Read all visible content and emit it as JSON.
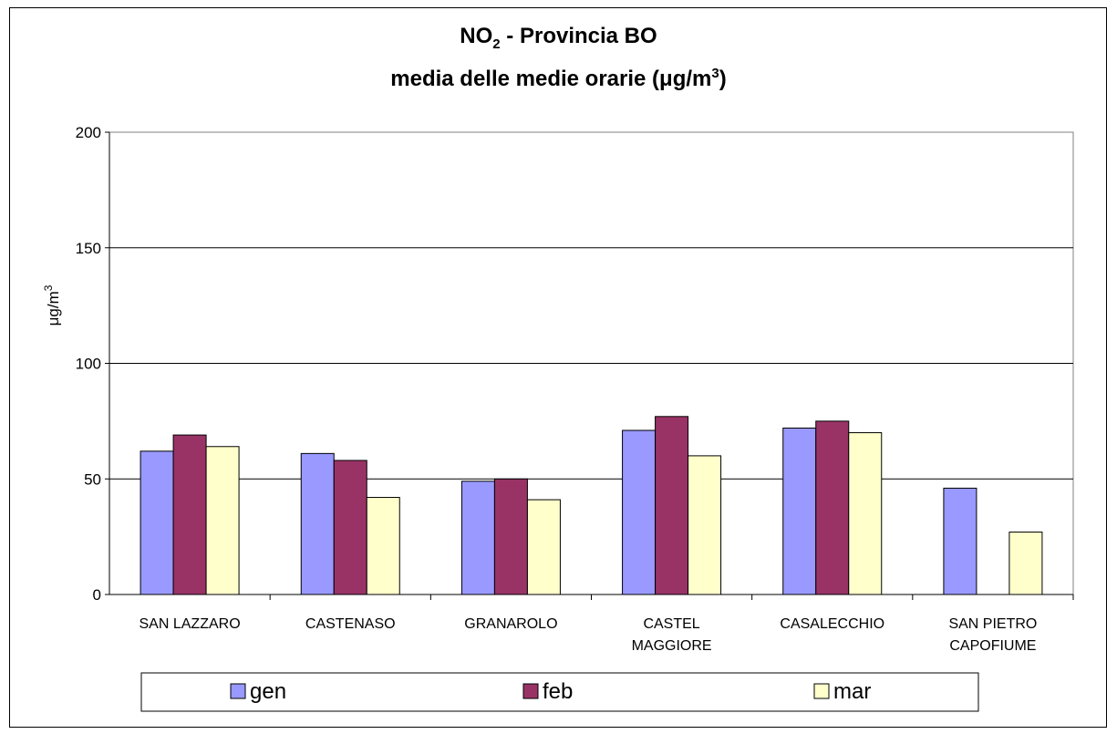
{
  "chart_data": {
    "type": "bar",
    "title_main": "NO",
    "title_sub": "2",
    "title_rest": " - Provincia BO",
    "subtitle_main": "media delle medie orarie (μg/m",
    "subtitle_sup": "3",
    "subtitle_end": ")",
    "ylabel_main": "μg/m",
    "ylabel_sup": "3",
    "ylim": [
      0,
      200
    ],
    "yticks": [
      0,
      50,
      100,
      150,
      200
    ],
    "grid": true,
    "legend_position": "bottom",
    "categories": [
      [
        "SAN LAZZARO"
      ],
      [
        "CASTENASO"
      ],
      [
        "GRANAROLO"
      ],
      [
        "CASTEL",
        "MAGGIORE"
      ],
      [
        "CASALECCHIO"
      ],
      [
        "SAN PIETRO",
        "CAPOFIUME"
      ]
    ],
    "series": [
      {
        "name": "gen",
        "color": "#9999ff",
        "values": [
          62,
          61,
          49,
          71,
          72,
          46
        ]
      },
      {
        "name": "feb",
        "color": "#993366",
        "values": [
          69,
          58,
          50,
          77,
          75,
          null
        ]
      },
      {
        "name": "mar",
        "color": "#ffffcc",
        "values": [
          64,
          42,
          41,
          60,
          70,
          27
        ]
      }
    ]
  }
}
